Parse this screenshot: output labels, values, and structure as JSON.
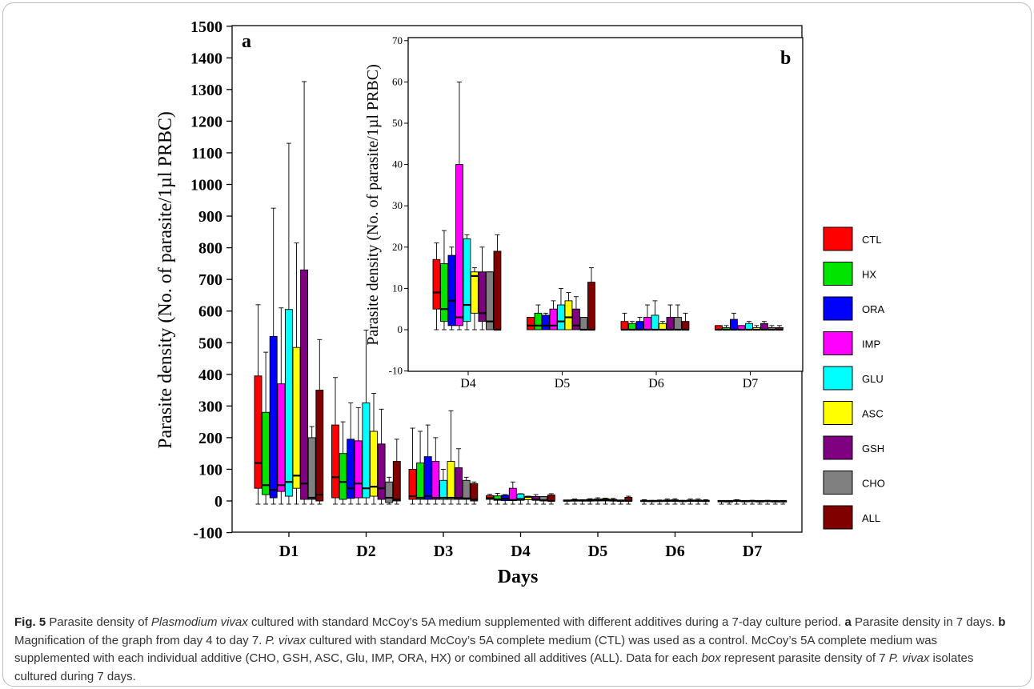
{
  "figure": {
    "caption_label": "Fig. 5",
    "caption_parts": [
      {
        "t": "Fig. 5",
        "s": "b"
      },
      {
        "t": "  Parasite density of ",
        "s": ""
      },
      {
        "t": "Plasmodium vivax",
        "s": "i"
      },
      {
        "t": " cultured with standard McCoy’s 5A medium supplemented with different additives during a 7-day culture period. ",
        "s": ""
      },
      {
        "t": "a",
        "s": "b"
      },
      {
        "t": " Parasite density in 7 days. ",
        "s": ""
      },
      {
        "t": "b",
        "s": "b"
      },
      {
        "t": " Magnification of the graph from day 4 to day 7. ",
        "s": ""
      },
      {
        "t": "P. vivax",
        "s": "i"
      },
      {
        "t": " cultured with standard McCoy’s 5A complete medium (CTL) was used as a control. McCoy’s 5A complete medium was supplemented with each individual additive (CHO, GSH, ASC, Glu, IMP, ORA, HX) or combined all additives (ALL). Data for each ",
        "s": ""
      },
      {
        "t": "box",
        "s": "i"
      },
      {
        "t": " represent parasite density of 7 ",
        "s": ""
      },
      {
        "t": "P. vivax",
        "s": "i"
      },
      {
        "t": " isolates cultured during 7 days.",
        "s": ""
      }
    ]
  },
  "legend_position": "right",
  "colors": {
    "CTL": "#ff0000",
    "HX": "#00e400",
    "ORA": "#0000ff",
    "IMP": "#ff00ff",
    "GLU": "#00ffff",
    "ASC": "#ffff00",
    "GSH": "#7f0080",
    "CHO": "#808080",
    "ALL": "#800000"
  },
  "chart_data": [
    {
      "type": "box",
      "panel_label": "a",
      "xlabel": "Days",
      "ylabel": "Parasite density (No. of parasite/1µl PRBC)",
      "ylim": [
        -100,
        1500
      ],
      "yticks": [
        -100,
        0,
        100,
        200,
        300,
        400,
        500,
        600,
        700,
        800,
        900,
        1000,
        1100,
        1200,
        1300,
        1400,
        1500
      ],
      "categories": [
        "D1",
        "D2",
        "D3",
        "D4",
        "D5",
        "D6",
        "D7"
      ],
      "series": [
        {
          "name": "CTL",
          "q1": [
            40,
            10,
            5,
            5,
            0,
            0,
            0
          ],
          "median": [
            120,
            75,
            15,
            9,
            1,
            0,
            0
          ],
          "q3": [
            395,
            240,
            100,
            17,
            3,
            2,
            1
          ],
          "whisker": [
            620,
            390,
            230,
            21,
            3,
            4,
            1
          ]
        },
        {
          "name": "HX",
          "q1": [
            20,
            5,
            5,
            2,
            0,
            0,
            0
          ],
          "median": [
            50,
            60,
            10,
            5,
            1,
            0,
            0
          ],
          "q3": [
            280,
            150,
            120,
            16,
            4,
            1.5,
            0.5
          ],
          "whisker": [
            470,
            250,
            220,
            24,
            6,
            2,
            1
          ]
        },
        {
          "name": "ORA",
          "q1": [
            10,
            8,
            5,
            1,
            0,
            0,
            0
          ],
          "median": [
            35,
            40,
            15,
            7,
            1,
            0,
            0
          ],
          "q3": [
            520,
            195,
            140,
            18,
            3.5,
            2,
            2.5
          ],
          "whisker": [
            925,
            310,
            240,
            20,
            4,
            3,
            4
          ]
        },
        {
          "name": "IMP",
          "q1": [
            30,
            10,
            5,
            1,
            0,
            0,
            0
          ],
          "median": [
            50,
            55,
            10,
            3,
            1,
            0,
            0
          ],
          "q3": [
            370,
            190,
            125,
            40,
            5,
            3,
            1
          ],
          "whisker": [
            610,
            295,
            200,
            60,
            7,
            6,
            1
          ]
        },
        {
          "name": "GLU",
          "q1": [
            15,
            10,
            5,
            2,
            0,
            0,
            0
          ],
          "median": [
            60,
            40,
            10,
            6,
            2,
            0,
            0
          ],
          "q3": [
            605,
            310,
            65,
            22,
            6,
            3.5,
            1.5
          ],
          "whisker": [
            1130,
            540,
            100,
            23,
            10,
            7,
            2
          ]
        },
        {
          "name": "ASC",
          "q1": [
            40,
            15,
            5,
            4,
            0,
            0,
            0
          ],
          "median": [
            80,
            45,
            10,
            13,
            3,
            0,
            0
          ],
          "q3": [
            485,
            220,
            125,
            14,
            7,
            1.5,
            0.5
          ],
          "whisker": [
            815,
            340,
            285,
            15,
            9,
            2,
            1
          ]
        },
        {
          "name": "GSH",
          "q1": [
            5,
            5,
            5,
            2,
            0,
            0,
            0
          ],
          "median": [
            55,
            40,
            10,
            4,
            1,
            0,
            0
          ],
          "q3": [
            730,
            180,
            105,
            14,
            5,
            3,
            1.5
          ],
          "whisker": [
            1325,
            290,
            165,
            20,
            8,
            6,
            2
          ]
        },
        {
          "name": "CHO",
          "q1": [
            5,
            -5,
            5,
            0,
            0,
            0,
            0
          ],
          "median": [
            10,
            10,
            8,
            2,
            0,
            0,
            0
          ],
          "q3": [
            200,
            60,
            65,
            14,
            3,
            3,
            0.5
          ],
          "whisker": [
            235,
            75,
            75,
            14,
            3,
            6,
            1
          ]
        },
        {
          "name": "ALL",
          "q1": [
            0,
            0,
            0,
            0,
            0,
            0,
            0
          ],
          "median": [
            20,
            5,
            5,
            0,
            0,
            0,
            0
          ],
          "q3": [
            350,
            125,
            55,
            19,
            11.5,
            2,
            0.5
          ],
          "whisker": [
            510,
            195,
            60,
            23,
            15,
            4,
            1
          ]
        }
      ]
    },
    {
      "type": "box",
      "panel_label": "b",
      "xlabel": "",
      "ylabel": "Parasite density (No. of parasite/1µl PRBC)",
      "ylim": [
        -10,
        70
      ],
      "yticks": [
        -10,
        0,
        10,
        20,
        30,
        40,
        50,
        60,
        70
      ],
      "categories": [
        "D4",
        "D5",
        "D6",
        "D7"
      ],
      "series_ref": "same series as panel a, days D4–D7"
    }
  ]
}
